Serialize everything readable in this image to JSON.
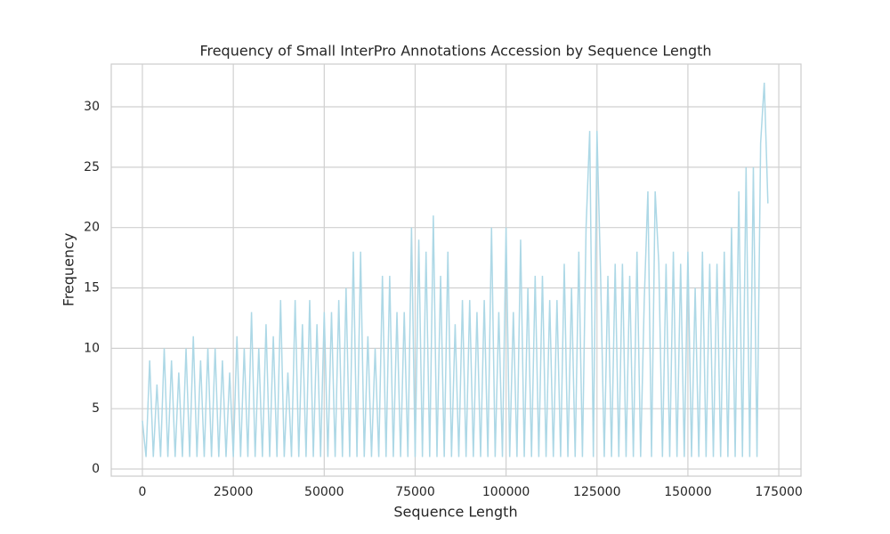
{
  "chart_data": {
    "type": "line",
    "title": "Frequency of Small InterPro Annotations Accession by Sequence Length",
    "x_label": "Sequence Length",
    "y_label": "Frequency",
    "xlim": [
      -8566,
      181100
    ],
    "ylim": [
      -0.59,
      33.54
    ],
    "xticks": [
      0,
      25000,
      50000,
      75000,
      100000,
      125000,
      150000,
      175000
    ],
    "yticks": [
      0,
      5,
      10,
      15,
      20,
      25,
      30
    ],
    "grid": true,
    "x": [
      0,
      1000,
      2000,
      3000,
      4000,
      5000,
      6000,
      7000,
      8000,
      9000,
      10000,
      11000,
      12000,
      13000,
      14000,
      15000,
      16000,
      17000,
      18000,
      19000,
      20000,
      21000,
      22000,
      23000,
      24000,
      25000,
      26000,
      27000,
      28000,
      29000,
      30000,
      31000,
      32000,
      33000,
      34000,
      35000,
      36000,
      37000,
      38000,
      39000,
      40000,
      41000,
      42000,
      43000,
      44000,
      45000,
      46000,
      47000,
      48000,
      49000,
      50000,
      51000,
      52000,
      53000,
      54000,
      55000,
      56000,
      57000,
      58000,
      59000,
      60000,
      61000,
      62000,
      63000,
      64000,
      65000,
      66000,
      67000,
      68000,
      69000,
      70000,
      71000,
      72000,
      73000,
      74000,
      75000,
      76000,
      77000,
      78000,
      79000,
      80000,
      81000,
      82000,
      83000,
      84000,
      85000,
      86000,
      87000,
      88000,
      89000,
      90000,
      91000,
      92000,
      93000,
      94000,
      95000,
      96000,
      97000,
      98000,
      99000,
      100000,
      101000,
      102000,
      103000,
      104000,
      105000,
      106000,
      107000,
      108000,
      109000,
      110000,
      111000,
      112000,
      113000,
      114000,
      115000,
      116000,
      117000,
      118000,
      119000,
      120000,
      121000,
      122000,
      123000,
      124000,
      125000,
      126000,
      127000,
      128000,
      129000,
      130000,
      131000,
      132000,
      133000,
      134000,
      135000,
      136000,
      137000,
      138000,
      139000,
      140000,
      141000,
      142000,
      143000,
      144000,
      145000,
      146000,
      147000,
      148000,
      149000,
      150000,
      151000,
      152000,
      153000,
      154000,
      155000,
      156000,
      157000,
      158000,
      159000,
      160000,
      161000,
      162000,
      163000,
      164000,
      165000,
      166000,
      167000,
      168000,
      169000,
      170000,
      171000,
      172000
    ],
    "series": [
      {
        "color": "#add8e6",
        "values": [
          4,
          1,
          9,
          1,
          7,
          1,
          10,
          1,
          9,
          1,
          8,
          1,
          10,
          1,
          11,
          1,
          9,
          1,
          10,
          1,
          10,
          1,
          9,
          1,
          8,
          1,
          11,
          1,
          10,
          1,
          13,
          1,
          10,
          1,
          12,
          1,
          11,
          1,
          14,
          1,
          8,
          1,
          14,
          1,
          12,
          1,
          14,
          1,
          12,
          1,
          13,
          1,
          13,
          1,
          14,
          1,
          15,
          1,
          18,
          1,
          18,
          1,
          11,
          1,
          10,
          1,
          16,
          1,
          16,
          1,
          13,
          1,
          13,
          1,
          20,
          1,
          19,
          1,
          18,
          1,
          21,
          1,
          16,
          1,
          18,
          1,
          12,
          1,
          14,
          1,
          14,
          1,
          13,
          1,
          14,
          1,
          20,
          1,
          13,
          1,
          20,
          1,
          13,
          1,
          19,
          1,
          15,
          1,
          16,
          1,
          16,
          1,
          14,
          1,
          14,
          1,
          17,
          1,
          15,
          1,
          18,
          1,
          20,
          28,
          1,
          28,
          16,
          1,
          16,
          1,
          17,
          1,
          17,
          1,
          16,
          1,
          18,
          1,
          14,
          23,
          1,
          23,
          17,
          1,
          17,
          1,
          18,
          1,
          17,
          1,
          18,
          1,
          15,
          1,
          18,
          1,
          17,
          1,
          17,
          1,
          18,
          1,
          20,
          1,
          23,
          1,
          25,
          1,
          25,
          1,
          27,
          32,
          22
        ]
      }
    ]
  }
}
